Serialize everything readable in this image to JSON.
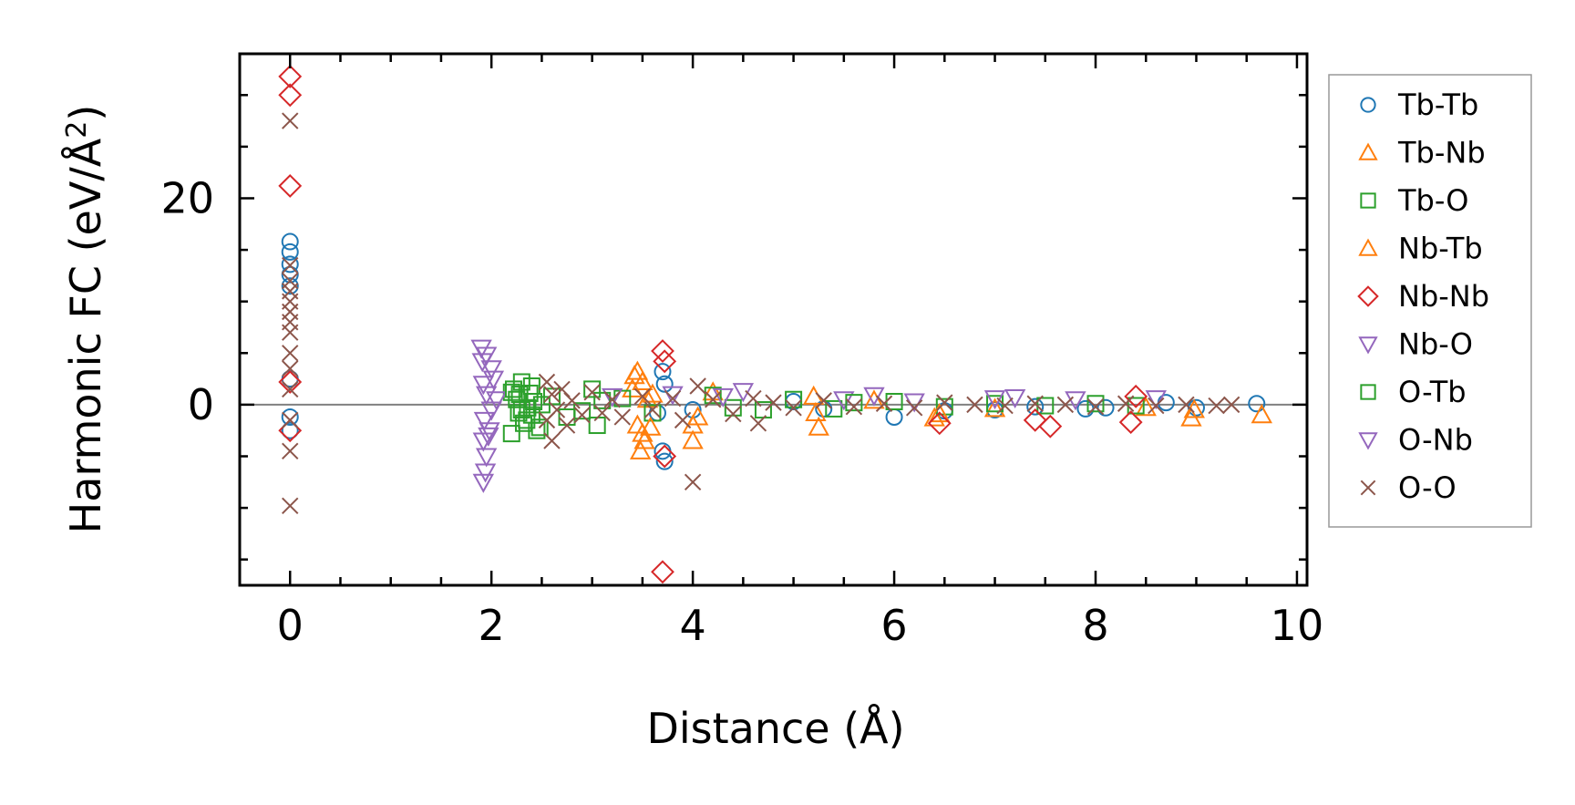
{
  "chart_data": {
    "type": "scatter",
    "xlabel": "Distance (Å)",
    "ylabel_prefix": "Harmonic FC (eV/Å",
    "ylabel_sup": "2",
    "ylabel_suffix": ")",
    "xlim": [
      -0.5,
      10.1
    ],
    "ylim": [
      -17.5,
      34
    ],
    "xticks": [
      0,
      2,
      4,
      6,
      8,
      10
    ],
    "xtick_labels": [
      "0",
      "2",
      "4",
      "6",
      "8",
      "10"
    ],
    "yticks": [
      0,
      20
    ],
    "ytick_labels": [
      "0",
      "20"
    ],
    "x_minor_step": 0.5,
    "y_minor_step": 5,
    "zero_line": true,
    "legend_position": "right-outside",
    "series": [
      {
        "name": "Tb-Tb",
        "marker": "circle",
        "color": "#1f77b4",
        "points": [
          [
            0,
            15.8
          ],
          [
            0,
            14.8
          ],
          [
            0,
            13.6
          ],
          [
            0,
            12.6
          ],
          [
            0,
            11.5
          ],
          [
            0,
            2.5
          ],
          [
            0,
            -1.2
          ],
          [
            0,
            -2.5
          ],
          [
            3.7,
            3.2
          ],
          [
            3.72,
            2.0
          ],
          [
            3.7,
            -4.5
          ],
          [
            3.72,
            -5.5
          ],
          [
            3.65,
            -0.8
          ],
          [
            4.0,
            -0.5
          ],
          [
            5.0,
            0.3
          ],
          [
            5.3,
            -0.4
          ],
          [
            6.0,
            -1.2
          ],
          [
            6.5,
            -0.6
          ],
          [
            7.0,
            -0.5
          ],
          [
            7.4,
            -0.2
          ],
          [
            7.9,
            -0.4
          ],
          [
            8.1,
            -0.3
          ],
          [
            8.7,
            0.2
          ],
          [
            9.0,
            -0.3
          ],
          [
            9.6,
            0.1
          ]
        ]
      },
      {
        "name": "Tb-Nb",
        "marker": "triangle-up",
        "color": "#ff7f0e",
        "points": [
          [
            3.45,
            3.2
          ],
          [
            3.5,
            2.2
          ],
          [
            3.4,
            1.5
          ],
          [
            3.55,
            0.5
          ],
          [
            3.45,
            -2.0
          ],
          [
            3.5,
            -2.8
          ],
          [
            3.48,
            -4.5
          ],
          [
            3.6,
            1.0
          ],
          [
            4.0,
            -2.0
          ],
          [
            4.0,
            -3.5
          ],
          [
            4.2,
            1.2
          ],
          [
            5.2,
            0.8
          ],
          [
            5.25,
            -2.2
          ],
          [
            5.8,
            0.4
          ],
          [
            6.4,
            -1.3
          ],
          [
            7.0,
            -0.4
          ],
          [
            8.5,
            -0.3
          ],
          [
            8.95,
            -1.3
          ],
          [
            9.65,
            -1.0
          ]
        ]
      },
      {
        "name": "Tb-O",
        "marker": "square",
        "color": "#2ca02c",
        "points": [
          [
            2.2,
            1.2
          ],
          [
            2.25,
            0.5
          ],
          [
            2.3,
            -0.5
          ],
          [
            2.35,
            -1.5
          ],
          [
            2.4,
            1.8
          ],
          [
            2.45,
            -2.5
          ],
          [
            2.2,
            -2.8
          ],
          [
            2.5,
            0.0
          ],
          [
            2.3,
            2.2
          ],
          [
            2.4,
            -1.0
          ],
          [
            2.28,
            1.0
          ],
          [
            2.36,
            -0.3
          ],
          [
            2.6,
            0.8
          ],
          [
            2.75,
            -1.2
          ],
          [
            3.0,
            1.5
          ],
          [
            3.05,
            -2.0
          ],
          [
            3.3,
            0.6
          ],
          [
            3.6,
            -0.8
          ],
          [
            4.2,
            0.9
          ],
          [
            4.7,
            -0.5
          ],
          [
            5.0,
            0.5
          ],
          [
            5.4,
            -0.4
          ],
          [
            6.0,
            0.3
          ],
          [
            6.5,
            -0.2
          ],
          [
            7.0,
            0.1
          ],
          [
            7.5,
            -0.1
          ],
          [
            8.0,
            0.1
          ],
          [
            8.4,
            -0.1
          ]
        ]
      },
      {
        "name": "Nb-Tb",
        "marker": "triangle-up",
        "color": "#ff7f0e",
        "points": [
          [
            3.42,
            2.8
          ],
          [
            3.52,
            -3.5
          ],
          [
            3.58,
            -2.2
          ],
          [
            4.05,
            -1.2
          ],
          [
            5.22,
            -0.8
          ],
          [
            6.45,
            -0.9
          ],
          [
            8.98,
            -0.5
          ]
        ]
      },
      {
        "name": "Nb-Nb",
        "marker": "diamond",
        "color": "#d62728",
        "points": [
          [
            0,
            31.8
          ],
          [
            0,
            30.0
          ],
          [
            0,
            21.2
          ],
          [
            0,
            2.2
          ],
          [
            0,
            -2.5
          ],
          [
            3.7,
            5.2
          ],
          [
            3.72,
            4.2
          ],
          [
            3.7,
            -16.2
          ],
          [
            3.72,
            -5.0
          ],
          [
            6.45,
            -1.8
          ],
          [
            7.4,
            -1.5
          ],
          [
            7.55,
            -2.1
          ],
          [
            8.35,
            -1.7
          ],
          [
            8.4,
            0.8
          ]
        ]
      },
      {
        "name": "Nb-O",
        "marker": "triangle-down",
        "color": "#9467bd",
        "points": [
          [
            1.9,
            5.5
          ],
          [
            1.95,
            4.8
          ],
          [
            2.0,
            3.5
          ],
          [
            1.92,
            2.0
          ],
          [
            1.95,
            1.0
          ],
          [
            2.0,
            -0.5
          ],
          [
            1.93,
            -1.5
          ],
          [
            1.98,
            -2.5
          ],
          [
            1.92,
            -3.5
          ],
          [
            1.95,
            -5.0
          ],
          [
            1.92,
            -7.5
          ],
          [
            2.05,
            0.5
          ],
          [
            3.2,
            0.8
          ],
          [
            3.8,
            1.0
          ],
          [
            4.5,
            1.3
          ],
          [
            5.5,
            0.5
          ],
          [
            6.2,
            0.3
          ],
          [
            7.0,
            0.6
          ],
          [
            7.8,
            0.5
          ],
          [
            8.6,
            0.6
          ]
        ]
      },
      {
        "name": "O-Tb",
        "marker": "square",
        "color": "#2ca02c",
        "points": [
          [
            2.22,
            1.5
          ],
          [
            2.32,
            -1.8
          ],
          [
            2.42,
            0.3
          ],
          [
            2.48,
            -2.2
          ],
          [
            2.27,
            -0.8
          ],
          [
            2.38,
            1.1
          ],
          [
            2.9,
            -0.6
          ],
          [
            3.1,
            0.4
          ],
          [
            4.4,
            -0.3
          ],
          [
            5.6,
            0.2
          ]
        ]
      },
      {
        "name": "O-Nb",
        "marker": "triangle-down",
        "color": "#9467bd",
        "points": [
          [
            1.91,
            4.2
          ],
          [
            1.97,
            -3.0
          ],
          [
            2.02,
            2.5
          ],
          [
            1.94,
            -6.5
          ],
          [
            4.3,
            0.8
          ],
          [
            5.8,
            0.9
          ],
          [
            7.2,
            0.7
          ]
        ]
      },
      {
        "name": "O-O",
        "marker": "x",
        "color": "#8c564b",
        "points": [
          [
            0,
            27.5
          ],
          [
            0,
            13.5
          ],
          [
            0,
            12.0
          ],
          [
            0,
            11.0
          ],
          [
            0,
            10.0
          ],
          [
            0,
            9.0
          ],
          [
            0,
            8.0
          ],
          [
            0,
            7.0
          ],
          [
            0,
            5.0
          ],
          [
            0,
            3.5
          ],
          [
            0,
            1.5
          ],
          [
            0,
            -1.5
          ],
          [
            0,
            -4.5
          ],
          [
            0,
            -9.8
          ],
          [
            2.55,
            2.2
          ],
          [
            2.6,
            1.0
          ],
          [
            2.65,
            -0.5
          ],
          [
            2.55,
            -1.5
          ],
          [
            2.6,
            -3.5
          ],
          [
            2.7,
            1.5
          ],
          [
            2.75,
            -2.0
          ],
          [
            2.8,
            0.4
          ],
          [
            2.9,
            -1.0
          ],
          [
            3.0,
            1.2
          ],
          [
            3.1,
            -0.8
          ],
          [
            3.2,
            0.5
          ],
          [
            3.3,
            -1.2
          ],
          [
            3.5,
            0.8
          ],
          [
            3.6,
            -0.5
          ],
          [
            3.8,
            0.6
          ],
          [
            3.9,
            -1.5
          ],
          [
            4.0,
            -7.5
          ],
          [
            4.05,
            1.8
          ],
          [
            4.2,
            0.5
          ],
          [
            4.4,
            -0.9
          ],
          [
            4.6,
            0.6
          ],
          [
            4.65,
            -1.8
          ],
          [
            4.8,
            0.2
          ],
          [
            5.0,
            -0.3
          ],
          [
            5.3,
            0.4
          ],
          [
            5.6,
            -0.2
          ],
          [
            5.9,
            0.1
          ],
          [
            6.2,
            -0.3
          ],
          [
            6.5,
            0.2
          ],
          [
            6.8,
            0.0
          ],
          [
            7.1,
            -0.1
          ],
          [
            7.4,
            0.1
          ],
          [
            7.7,
            0.0
          ],
          [
            8.0,
            -0.2
          ],
          [
            8.3,
            0.1
          ],
          [
            8.6,
            -0.1
          ],
          [
            8.9,
            0.0
          ],
          [
            9.2,
            -0.1
          ],
          [
            9.35,
            0.0
          ]
        ]
      }
    ]
  }
}
